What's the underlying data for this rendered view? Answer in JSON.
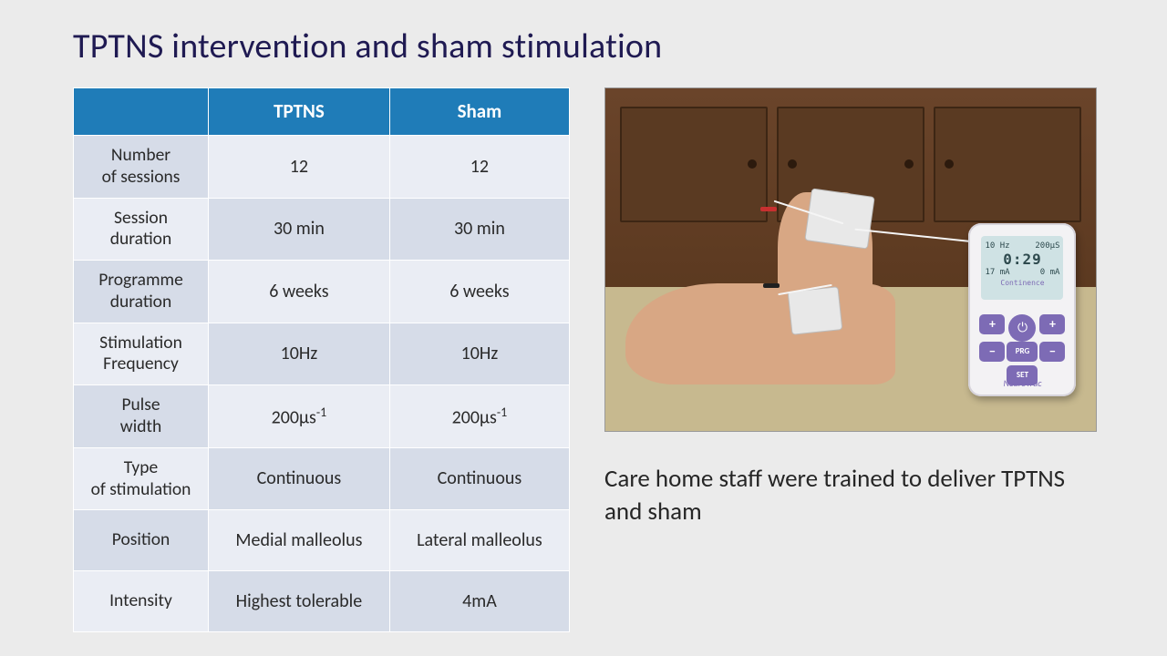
{
  "title": "TPTNS intervention and sham stimulation",
  "table": {
    "header_bg": "#1f7cb8",
    "header_fg": "#ffffff",
    "row_label_bg": "#d6dce8",
    "cell_bg_a": "#eaedf4",
    "cell_bg_b": "#d6dce8",
    "columns": [
      "",
      "TPTNS",
      "Sham"
    ],
    "rows": [
      {
        "label": "Number of sessions",
        "tptns": "12",
        "sham": "12"
      },
      {
        "label": "Session duration",
        "tptns": "30 min",
        "sham": "30 min"
      },
      {
        "label": "Programme duration",
        "tptns": "6 weeks",
        "sham": "6 weeks"
      },
      {
        "label": "Stimulation Frequency",
        "tptns": "10Hz",
        "sham": "10Hz"
      },
      {
        "label": "Pulse width",
        "tptns": "200µs⁻¹",
        "sham": "200µs⁻¹"
      },
      {
        "label": "Type of stimulation",
        "tptns": "Continuous",
        "sham": "Continuous"
      },
      {
        "label": "Position",
        "tptns": "Medial malleolus",
        "sham": "Lateral malleolus"
      },
      {
        "label": "Intensity",
        "tptns": "Highest tolerable",
        "sham": "4mA"
      }
    ]
  },
  "photo": {
    "alt": "Foot with two electrode pads on the medial ankle connected by white leads to a NeuroTrac Continence TENS device",
    "device_brand": "NeuroTrac",
    "device_label": "Continence",
    "screen_top_left": "10 Hz",
    "screen_top_right": "200µS",
    "screen_time": "0:29",
    "screen_bottom_left": "17 mA",
    "screen_bottom_right": "0 mA"
  },
  "caption": "Care home staff were trained to deliver TPTNS and sham",
  "colors": {
    "slide_bg": "#ebebeb",
    "title_color": "#1f1a52",
    "caption_color": "#262626",
    "device_body": "#f3f2f4",
    "device_accent": "#7d6bb5",
    "device_screen": "#cfe2e4"
  }
}
